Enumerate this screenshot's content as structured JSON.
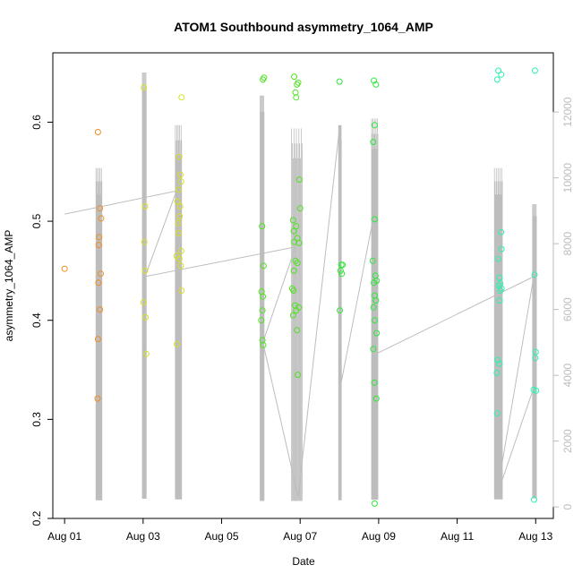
{
  "chart_data": {
    "type": "scatter",
    "title": "ATOM1 Southbound asymmetry_1064_AMP",
    "xlabel": "Date",
    "ylabel": "asymmetry_1064_AMP",
    "x_ticks": [
      "Aug 01",
      "Aug 03",
      "Aug 05",
      "Aug 07",
      "Aug 09",
      "Aug 11",
      "Aug 13"
    ],
    "x_tick_days": [
      1,
      3,
      5,
      7,
      9,
      11,
      13
    ],
    "xlim_days": [
      0.7,
      13.45
    ],
    "ylim": [
      0.2,
      0.67
    ],
    "y_ticks": [
      0.2,
      0.3,
      0.4,
      0.5,
      0.6
    ],
    "y2lim": [
      -350,
      13800
    ],
    "y2_ticks": [
      0,
      2000,
      4000,
      6000,
      8000,
      10000,
      12000
    ],
    "marker": "open-circle",
    "series": [
      {
        "color": "#f28c1e",
        "points": [
          [
            1.0,
            0.452
          ],
          [
            1.85,
            0.59
          ],
          [
            1.9,
            0.513
          ],
          [
            1.93,
            0.503
          ],
          [
            1.88,
            0.484
          ],
          [
            1.87,
            0.476
          ],
          [
            1.92,
            0.447
          ],
          [
            1.86,
            0.438
          ],
          [
            1.9,
            0.411
          ],
          [
            1.85,
            0.381
          ],
          [
            1.84,
            0.321
          ]
        ]
      },
      {
        "color": "#d8e020",
        "points": [
          [
            3.02,
            0.635
          ],
          [
            3.05,
            0.515
          ],
          [
            3.03,
            0.479
          ],
          [
            3.05,
            0.45
          ],
          [
            3.01,
            0.418
          ],
          [
            3.06,
            0.403
          ],
          [
            3.08,
            0.366
          ],
          [
            3.98,
            0.625
          ],
          [
            3.92,
            0.565
          ],
          [
            3.95,
            0.547
          ],
          [
            3.97,
            0.54
          ],
          [
            3.9,
            0.532
          ],
          [
            3.87,
            0.52
          ],
          [
            3.94,
            0.515
          ],
          [
            3.93,
            0.505
          ],
          [
            3.89,
            0.498
          ],
          [
            3.9,
            0.488
          ],
          [
            3.97,
            0.47
          ],
          [
            3.85,
            0.465
          ],
          [
            3.92,
            0.462
          ],
          [
            3.96,
            0.455
          ],
          [
            3.98,
            0.43
          ],
          [
            3.86,
            0.376
          ]
        ]
      },
      {
        "color": "#4fe320",
        "points": [
          [
            6.05,
            0.643
          ],
          [
            6.08,
            0.645
          ],
          [
            6.03,
            0.495
          ],
          [
            6.07,
            0.455
          ],
          [
            6.02,
            0.429
          ],
          [
            6.05,
            0.424
          ],
          [
            6.04,
            0.41
          ],
          [
            6.01,
            0.4
          ],
          [
            6.04,
            0.38
          ],
          [
            6.06,
            0.375
          ],
          [
            6.85,
            0.646
          ],
          [
            6.92,
            0.638
          ],
          [
            6.95,
            0.64
          ],
          [
            6.88,
            0.63
          ],
          [
            6.9,
            0.625
          ],
          [
            6.98,
            0.542
          ],
          [
            7.0,
            0.513
          ],
          [
            6.82,
            0.501
          ],
          [
            6.84,
            0.49
          ],
          [
            6.9,
            0.495
          ],
          [
            6.93,
            0.483
          ],
          [
            6.85,
            0.479
          ],
          [
            6.97,
            0.478
          ],
          [
            6.88,
            0.46
          ],
          [
            6.93,
            0.458
          ],
          [
            6.84,
            0.45
          ],
          [
            6.8,
            0.432
          ],
          [
            6.83,
            0.43
          ],
          [
            6.87,
            0.415
          ],
          [
            6.96,
            0.413
          ],
          [
            6.82,
            0.405
          ],
          [
            6.9,
            0.41
          ],
          [
            6.92,
            0.39
          ],
          [
            6.94,
            0.345
          ]
        ]
      },
      {
        "color": "#2ee83a",
        "points": [
          [
            8.0,
            0.641
          ],
          [
            8.88,
            0.642
          ],
          [
            8.93,
            0.638
          ],
          [
            8.9,
            0.597
          ],
          [
            8.86,
            0.58
          ],
          [
            8.9,
            0.502
          ],
          [
            8.05,
            0.456
          ],
          [
            8.08,
            0.456
          ],
          [
            8.03,
            0.45
          ],
          [
            8.06,
            0.447
          ],
          [
            8.01,
            0.41
          ],
          [
            8.85,
            0.46
          ],
          [
            8.92,
            0.445
          ],
          [
            8.95,
            0.44
          ],
          [
            8.88,
            0.438
          ],
          [
            8.9,
            0.425
          ],
          [
            8.93,
            0.42
          ],
          [
            8.87,
            0.413
          ],
          [
            8.9,
            0.4
          ],
          [
            8.95,
            0.387
          ],
          [
            8.86,
            0.371
          ],
          [
            8.89,
            0.337
          ],
          [
            8.94,
            0.321
          ],
          [
            8.9,
            0.215
          ]
        ]
      },
      {
        "color": "#2cf2b0",
        "points": [
          [
            12.05,
            0.652
          ],
          [
            12.02,
            0.643
          ],
          [
            12.12,
            0.648
          ],
          [
            12.98,
            0.652
          ],
          [
            12.12,
            0.489
          ],
          [
            12.13,
            0.472
          ],
          [
            12.05,
            0.462
          ],
          [
            12.08,
            0.443
          ],
          [
            12.1,
            0.437
          ],
          [
            12.06,
            0.435
          ],
          [
            12.13,
            0.432
          ],
          [
            12.1,
            0.43
          ],
          [
            12.08,
            0.42
          ],
          [
            12.03,
            0.36
          ],
          [
            12.07,
            0.356
          ],
          [
            12.01,
            0.347
          ],
          [
            12.02,
            0.306
          ],
          [
            12.97,
            0.446
          ],
          [
            13.0,
            0.368
          ],
          [
            12.99,
            0.362
          ],
          [
            12.95,
            0.33
          ],
          [
            13.01,
            0.329
          ],
          [
            12.96,
            0.219
          ]
        ]
      }
    ],
    "right_axis_series": {
      "color": "#bdbdbd",
      "bursts": [
        {
          "x_start": 1.8,
          "x_end": 1.95,
          "y_min": 200,
          "y_max": 10300
        },
        {
          "x_start": 2.98,
          "x_end": 3.08,
          "y_min": 250,
          "y_max": 13200
        },
        {
          "x_start": 3.82,
          "x_end": 3.98,
          "y_min": 230,
          "y_max": 11600
        },
        {
          "x_start": 5.98,
          "x_end": 6.08,
          "y_min": 180,
          "y_max": 12500
        },
        {
          "x_start": 6.78,
          "x_end": 7.05,
          "y_min": 180,
          "y_max": 11500
        },
        {
          "x_start": 7.98,
          "x_end": 8.05,
          "y_min": 200,
          "y_max": 11600
        },
        {
          "x_start": 8.82,
          "x_end": 8.98,
          "y_min": 220,
          "y_max": 11800
        },
        {
          "x_start": 11.95,
          "x_end": 12.15,
          "y_min": 230,
          "y_max": 10300
        },
        {
          "x_start": 12.92,
          "x_end": 13.02,
          "y_min": 260,
          "y_max": 9200
        }
      ],
      "connector": [
        [
          1.0,
          8900
        ],
        [
          3.85,
          9600
        ],
        [
          3.05,
          7000
        ],
        [
          6.88,
          7900
        ],
        [
          6.05,
          5000
        ],
        [
          6.95,
          300
        ],
        [
          8.0,
          11500
        ],
        [
          8.05,
          3800
        ],
        [
          8.9,
          9000
        ],
        [
          8.85,
          4600
        ],
        [
          12.95,
          7000
        ],
        [
          12.0,
          300
        ],
        [
          13.0,
          3800
        ]
      ]
    }
  }
}
